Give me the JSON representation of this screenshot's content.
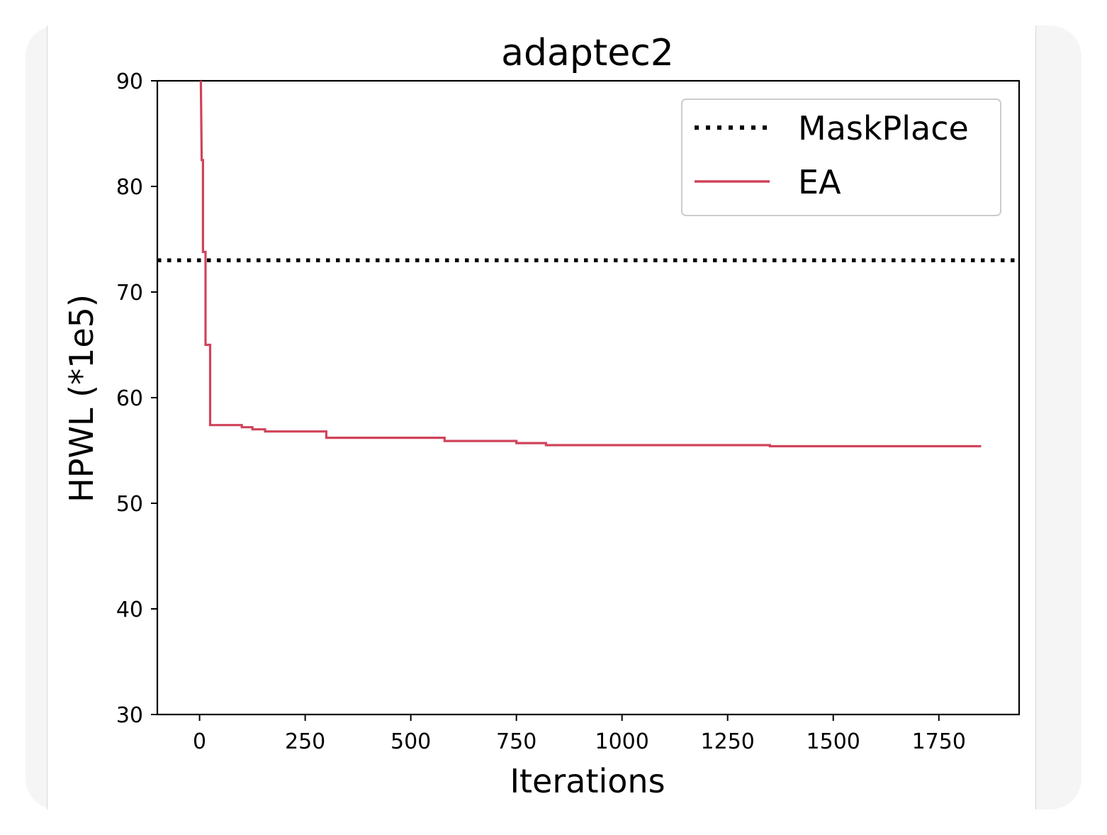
{
  "chart_data": {
    "type": "line",
    "title": "adaptec2",
    "xlabel": "Iterations",
    "ylabel": "HPWL (*1e5)",
    "xlim": [
      -100,
      1940
    ],
    "ylim": [
      30,
      90
    ],
    "xticks": [
      0,
      250,
      500,
      750,
      1000,
      1250,
      1500,
      1750
    ],
    "yticks": [
      30,
      40,
      50,
      60,
      70,
      80,
      90
    ],
    "legend_position": "upper right",
    "series": [
      {
        "name": "MaskPlace",
        "style": "dotted",
        "color": "#000000",
        "y_constant": 73
      },
      {
        "name": "EA",
        "style": "solid",
        "color": "#d0435a",
        "x": [
          3,
          5,
          5,
          8,
          8,
          14,
          14,
          18,
          18,
          25,
          25,
          100,
          100,
          125,
          125,
          155,
          155,
          300,
          300,
          580,
          580,
          750,
          750,
          820,
          820,
          1350,
          1350,
          1850
        ],
        "y": [
          90,
          82.5,
          82.5,
          82.5,
          73.8,
          73.8,
          65,
          65,
          65,
          65,
          57.4,
          57.4,
          57.2,
          57.2,
          57.0,
          57.0,
          56.8,
          56.8,
          56.2,
          56.2,
          55.9,
          55.9,
          55.7,
          55.7,
          55.5,
          55.5,
          55.4,
          55.4
        ]
      }
    ]
  }
}
